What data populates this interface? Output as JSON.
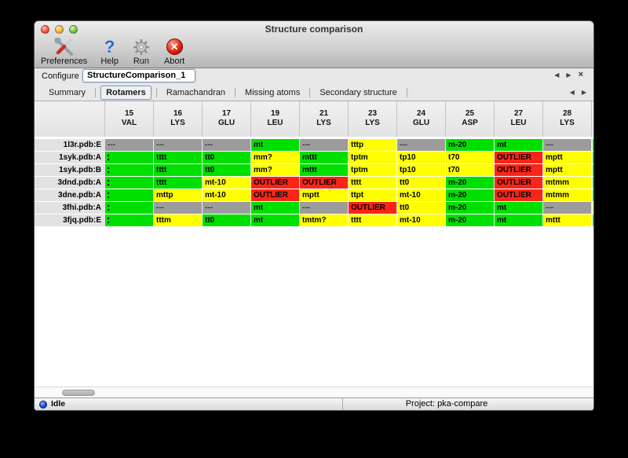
{
  "window": {
    "title": "Structure comparison"
  },
  "toolbar": {
    "items": [
      {
        "label": "Preferences",
        "icon": "tools-icon"
      },
      {
        "label": "Help",
        "icon": "help-question-icon"
      },
      {
        "label": "Run",
        "icon": "gear-icon"
      },
      {
        "label": "Abort",
        "icon": "abort-stop-icon"
      }
    ]
  },
  "configure": {
    "label": "Configure",
    "value": "StructureComparison_1"
  },
  "pane_controls": {
    "scroll_left": "◀",
    "scroll_right": "▶",
    "close": "×"
  },
  "tabs": [
    {
      "label": "Summary",
      "selected": false
    },
    {
      "label": "Rotamers",
      "selected": true
    },
    {
      "label": "Ramachandran",
      "selected": false
    },
    {
      "label": "Missing atoms",
      "selected": false
    },
    {
      "label": "Secondary structure",
      "selected": false
    }
  ],
  "colors": {
    "favored": "#00e000",
    "allowed": "#ffff00",
    "outlier": "#f92519",
    "missing": "#9c9c9c"
  },
  "table": {
    "columns": [
      {
        "number": "15",
        "residue": "VAL"
      },
      {
        "number": "16",
        "residue": "LYS"
      },
      {
        "number": "17",
        "residue": "GLU"
      },
      {
        "number": "19",
        "residue": "LEU"
      },
      {
        "number": "21",
        "residue": "LYS"
      },
      {
        "number": "23",
        "residue": "LYS"
      },
      {
        "number": "24",
        "residue": "GLU"
      },
      {
        "number": "25",
        "residue": "ASP"
      },
      {
        "number": "27",
        "residue": "LEU"
      },
      {
        "number": "28",
        "residue": "LYS"
      }
    ],
    "rows": [
      {
        "label": "1l3r.pdb:E",
        "overflow": "favored",
        "cells": [
          {
            "text": "---",
            "status": "missing"
          },
          {
            "text": "---",
            "status": "missing"
          },
          {
            "text": "---",
            "status": "missing"
          },
          {
            "text": "mt",
            "status": "favored"
          },
          {
            "text": "---",
            "status": "missing"
          },
          {
            "text": "tttp",
            "status": "allowed"
          },
          {
            "text": "---",
            "status": "missing"
          },
          {
            "text": "m-20",
            "status": "favored"
          },
          {
            "text": "mt",
            "status": "favored"
          },
          {
            "text": "---",
            "status": "missing"
          }
        ]
      },
      {
        "label": "1syk.pdb:A",
        "overflow": "favored",
        "cells": [
          {
            "text": "",
            "status": "favored",
            "clipped": true
          },
          {
            "text": "tttt",
            "status": "favored"
          },
          {
            "text": "tt0",
            "status": "favored"
          },
          {
            "text": "mm?",
            "status": "allowed"
          },
          {
            "text": "mttt",
            "status": "favored"
          },
          {
            "text": "tptm",
            "status": "allowed"
          },
          {
            "text": "tp10",
            "status": "allowed"
          },
          {
            "text": "t70",
            "status": "allowed"
          },
          {
            "text": "OUTLIER",
            "status": "outlier"
          },
          {
            "text": "mptt",
            "status": "allowed"
          }
        ]
      },
      {
        "label": "1syk.pdb:B",
        "overflow": "favored",
        "cells": [
          {
            "text": "",
            "status": "favored",
            "clipped": true
          },
          {
            "text": "tttt",
            "status": "favored"
          },
          {
            "text": "tt0",
            "status": "favored"
          },
          {
            "text": "mm?",
            "status": "allowed"
          },
          {
            "text": "mttt",
            "status": "favored"
          },
          {
            "text": "tptm",
            "status": "allowed"
          },
          {
            "text": "tp10",
            "status": "allowed"
          },
          {
            "text": "t70",
            "status": "allowed"
          },
          {
            "text": "OUTLIER",
            "status": "outlier"
          },
          {
            "text": "mptt",
            "status": "allowed"
          }
        ]
      },
      {
        "label": "3dnd.pdb:A",
        "overflow": "favored",
        "cells": [
          {
            "text": "",
            "status": "favored",
            "clipped": true
          },
          {
            "text": "tttt",
            "status": "favored"
          },
          {
            "text": "mt-10",
            "status": "allowed"
          },
          {
            "text": "OUTLIER",
            "status": "outlier"
          },
          {
            "text": "OUTLIER",
            "status": "outlier"
          },
          {
            "text": "tttt",
            "status": "allowed"
          },
          {
            "text": "tt0",
            "status": "allowed"
          },
          {
            "text": "m-20",
            "status": "favored"
          },
          {
            "text": "OUTLIER",
            "status": "outlier"
          },
          {
            "text": "mtmm",
            "status": "allowed"
          }
        ]
      },
      {
        "label": "3dne.pdb:A",
        "overflow": "favored",
        "cells": [
          {
            "text": "",
            "status": "favored",
            "clipped": true
          },
          {
            "text": "mttp",
            "status": "allowed"
          },
          {
            "text": "mt-10",
            "status": "allowed"
          },
          {
            "text": "OUTLIER",
            "status": "outlier"
          },
          {
            "text": "mptt",
            "status": "allowed"
          },
          {
            "text": "ttpt",
            "status": "allowed"
          },
          {
            "text": "mt-10",
            "status": "allowed"
          },
          {
            "text": "m-20",
            "status": "favored"
          },
          {
            "text": "OUTLIER",
            "status": "outlier"
          },
          {
            "text": "mtmm",
            "status": "allowed"
          }
        ]
      },
      {
        "label": "3fhi.pdb:A",
        "overflow": "allowed",
        "cells": [
          {
            "text": "",
            "status": "favored",
            "clipped": true
          },
          {
            "text": "---",
            "status": "missing"
          },
          {
            "text": "---",
            "status": "missing"
          },
          {
            "text": "mt",
            "status": "favored"
          },
          {
            "text": "---",
            "status": "missing"
          },
          {
            "text": "OUTLIER",
            "status": "outlier"
          },
          {
            "text": "tt0",
            "status": "allowed"
          },
          {
            "text": "m-20",
            "status": "favored"
          },
          {
            "text": "mt",
            "status": "favored"
          },
          {
            "text": "---",
            "status": "missing"
          }
        ]
      },
      {
        "label": "3fjq.pdb:E",
        "overflow": "favored",
        "cells": [
          {
            "text": "",
            "status": "favored",
            "clipped": true
          },
          {
            "text": "tttm",
            "status": "allowed"
          },
          {
            "text": "tt0",
            "status": "favored"
          },
          {
            "text": "mt",
            "status": "favored"
          },
          {
            "text": "tmtm?",
            "status": "allowed"
          },
          {
            "text": "tttt",
            "status": "allowed"
          },
          {
            "text": "mt-10",
            "status": "allowed"
          },
          {
            "text": "m-20",
            "status": "favored"
          },
          {
            "text": "mt",
            "status": "favored"
          },
          {
            "text": "mttt",
            "status": "allowed"
          }
        ]
      }
    ]
  },
  "statusbar": {
    "state": "Idle",
    "project": "Project: pka-compare"
  }
}
